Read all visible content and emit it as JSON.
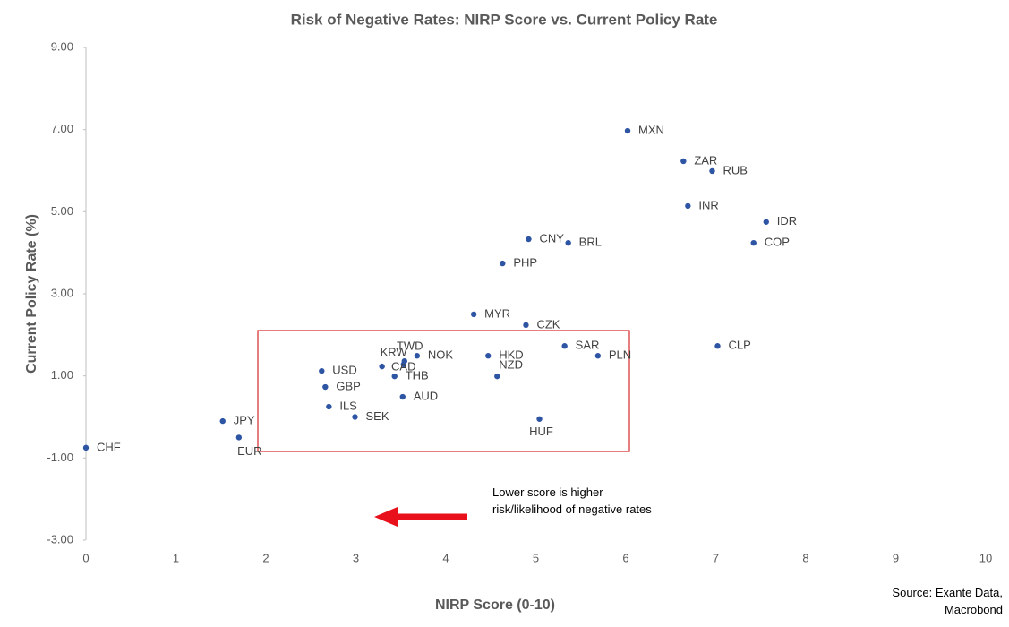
{
  "chart_data": {
    "type": "scatter",
    "title": "Risk of Negative Rates: NIRP Score vs. Current Policy Rate",
    "x_label": "NIRP Score (0-10)",
    "y_label": "Current Policy Rate (%)",
    "point_labels": [
      "CHF",
      "JPY",
      "EUR",
      "USD",
      "GBP",
      "ILS",
      "SEK",
      "KRW",
      "CAD",
      "TWD",
      "THB",
      "NOK",
      "AUD",
      "HKD",
      "NZD",
      "HUF",
      "MYR",
      "CZK",
      "PHP",
      "CNY",
      "BRL",
      "SAR",
      "PLN",
      "MXN",
      "ZAR",
      "RUB",
      "INR",
      "IDR",
      "COP",
      "CLP"
    ],
    "x": [
      0,
      1.52,
      1.7,
      2.62,
      2.66,
      2.7,
      2.99,
      3.29,
      3.53,
      3.54,
      3.43,
      3.68,
      3.52,
      4.47,
      4.57,
      5.04,
      4.31,
      4.89,
      4.63,
      4.92,
      5.36,
      5.32,
      5.69,
      6.02,
      6.64,
      6.96,
      6.69,
      7.56,
      7.42,
      7.02
    ],
    "values": [
      -0.75,
      -0.1,
      -0.5,
      1.12,
      0.73,
      0.25,
      0.0,
      1.23,
      1.28,
      1.36,
      0.99,
      1.49,
      0.49,
      1.49,
      0.99,
      -0.05,
      2.5,
      2.24,
      3.74,
      4.33,
      4.24,
      1.73,
      1.49,
      6.97,
      6.23,
      5.99,
      5.14,
      4.75,
      4.24,
      1.73
    ],
    "color": "#2e55a4",
    "xlim": [
      0,
      10
    ],
    "xticks": [
      0,
      1,
      2,
      3,
      4,
      5,
      6,
      7,
      8,
      9,
      10
    ],
    "ylim": [
      -3,
      9
    ],
    "yticks": [
      {
        "value": -3,
        "label": "-3.00"
      },
      {
        "value": -1,
        "label": "-1.00"
      },
      {
        "value": 1,
        "label": "1.00"
      },
      {
        "value": 3,
        "label": "3.00"
      },
      {
        "value": 5,
        "label": "5.00"
      },
      {
        "value": 7,
        "label": "7.00"
      },
      {
        "value": 9,
        "label": "9.00"
      }
    ],
    "annotation": "Lower score is higher risk/likelihood of negative rates",
    "source": "Source: Exante Data, Macrobond"
  }
}
